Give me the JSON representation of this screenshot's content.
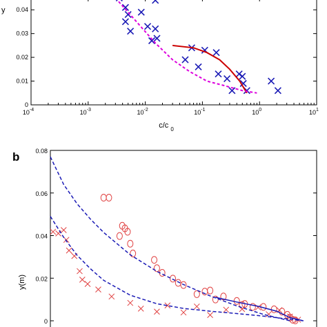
{
  "chart_data": [
    {
      "type": "scatter",
      "panel_label": "",
      "title": "",
      "xlabel": "c/c0",
      "ylabel": "y",
      "xscale": "log",
      "xlim": [
        0.0001,
        10
      ],
      "ylim": [
        0,
        0.045
      ],
      "x_ticks": [
        0.0001,
        0.001,
        0.01,
        0.1,
        1,
        10
      ],
      "x_tick_labels": [
        {
          "base": "10",
          "exp": "-4"
        },
        {
          "base": "10",
          "exp": "-3"
        },
        {
          "base": "10",
          "exp": "-2"
        },
        {
          "base": "10",
          "exp": "-1"
        },
        {
          "base": "10",
          "exp": "0"
        },
        {
          "base": "10",
          "exp": "1"
        }
      ],
      "y_ticks": [
        0,
        0.01,
        0.02,
        0.03,
        0.04
      ],
      "y_tick_labels": [
        "0",
        "0.01",
        "0.02",
        "0.03",
        "0.04"
      ],
      "grid": false,
      "series": [
        {
          "marker": "x",
          "color": "#1a1ab5",
          "x": [
            0.0035,
            0.0045,
            0.0045,
            0.005,
            0.0055,
            0.0085,
            0.011,
            0.013,
            0.015,
            0.015,
            0.016,
            0.05,
            0.065,
            0.085,
            0.11,
            0.175,
            0.19,
            0.27,
            0.33,
            0.44,
            0.5,
            0.52,
            0.6,
            1.6,
            2.1
          ],
          "y": [
            0.045,
            0.041,
            0.035,
            0.038,
            0.031,
            0.039,
            0.033,
            0.027,
            0.044,
            0.032,
            0.028,
            0.019,
            0.024,
            0.016,
            0.023,
            0.022,
            0.013,
            0.011,
            0.006,
            0.013,
            0.012,
            0.009,
            0.006,
            0.01,
            0.006
          ]
        },
        {
          "line": "solid",
          "color": "#cc0000",
          "x": [
            0.03,
            0.07,
            0.12,
            0.2,
            0.3,
            0.45,
            0.6
          ],
          "y": [
            0.025,
            0.024,
            0.022,
            0.019,
            0.015,
            0.01,
            0.005
          ]
        },
        {
          "line": "dashed",
          "color": "#dd00dd",
          "x": [
            0.003,
            0.007,
            0.015,
            0.03,
            0.06,
            0.12,
            0.25,
            0.5,
            0.9
          ],
          "y": [
            0.045,
            0.035,
            0.026,
            0.019,
            0.014,
            0.01,
            0.008,
            0.006,
            0.005
          ]
        }
      ]
    },
    {
      "type": "scatter",
      "panel_label": "b",
      "title": "",
      "xlabel": "",
      "ylabel": "y(m)",
      "xlim": [
        0,
        1
      ],
      "ylim": [
        0,
        0.08
      ],
      "y_ticks": [
        0,
        0.02,
        0.04,
        0.06,
        0.08
      ],
      "y_tick_labels": [
        "0",
        "0.02",
        "0.04",
        "0.06",
        "0.08"
      ],
      "grid": false,
      "series": [
        {
          "marker": "o",
          "color": "#e04040",
          "x": [
            0.2,
            0.22,
            0.27,
            0.28,
            0.29,
            0.26,
            0.3,
            0.31,
            0.39,
            0.4,
            0.42,
            0.46,
            0.48,
            0.5,
            0.55,
            0.58,
            0.6,
            0.62,
            0.65,
            0.7,
            0.72,
            0.73,
            0.76,
            0.8,
            0.84,
            0.87,
            0.89,
            0.9,
            0.91,
            0.92
          ],
          "y": [
            0.0578,
            0.0578,
            0.0446,
            0.0434,
            0.0418,
            0.0398,
            0.0362,
            0.0316,
            0.0286,
            0.0247,
            0.0225,
            0.0198,
            0.0178,
            0.0168,
            0.0125,
            0.0137,
            0.0142,
            0.01,
            0.0114,
            0.0093,
            0.0074,
            0.0079,
            0.0065,
            0.0065,
            0.0054,
            0.0043,
            0.0028,
            0.0015,
            0.0005,
            0.0002
          ]
        },
        {
          "marker": "x",
          "color": "#e04040",
          "x": [
            0.01,
            0.03,
            0.05,
            0.06,
            0.07,
            0.09,
            0.11,
            0.12,
            0.14,
            0.18,
            0.23,
            0.3,
            0.34,
            0.4,
            0.44,
            0.5,
            0.55,
            0.6,
            0.66,
            0.72,
            0.78,
            0.82,
            0.86,
            0.9,
            0.93
          ],
          "y": [
            0.0418,
            0.041,
            0.0426,
            0.038,
            0.033,
            0.0304,
            0.0233,
            0.0193,
            0.0173,
            0.0147,
            0.0114,
            0.0084,
            0.0057,
            0.0043,
            0.0072,
            0.0039,
            0.0067,
            0.0027,
            0.0052,
            0.0055,
            0.0063,
            0.0031,
            0.005,
            0.002,
            0.0005
          ]
        },
        {
          "line": "dashed",
          "color": "#1a1ab5",
          "x": [
            0,
            0.05,
            0.1,
            0.15,
            0.2,
            0.3,
            0.4,
            0.5,
            0.6,
            0.7,
            0.8,
            0.9
          ],
          "y": [
            0.077,
            0.064,
            0.055,
            0.0478,
            0.0415,
            0.031,
            0.0232,
            0.017,
            0.0117,
            0.007,
            0.003,
            0
          ]
        },
        {
          "line": "dashed",
          "color": "#1a1ab5",
          "x": [
            0,
            0.05,
            0.1,
            0.15,
            0.2,
            0.3,
            0.4,
            0.5,
            0.6,
            0.7,
            0.8,
            0.9,
            0.95
          ],
          "y": [
            0.049,
            0.0392,
            0.0308,
            0.0245,
            0.019,
            0.012,
            0.008,
            0.0058,
            0.0045,
            0.0034,
            0.0022,
            0.0007,
            0
          ]
        },
        {
          "line": "solid",
          "color": "#1a1ab5",
          "x": [
            0.62,
            0.7,
            0.78,
            0.85,
            0.9,
            0.95
          ],
          "y": [
            0.011,
            0.0088,
            0.0068,
            0.0045,
            0.0015,
            0
          ]
        }
      ]
    }
  ]
}
